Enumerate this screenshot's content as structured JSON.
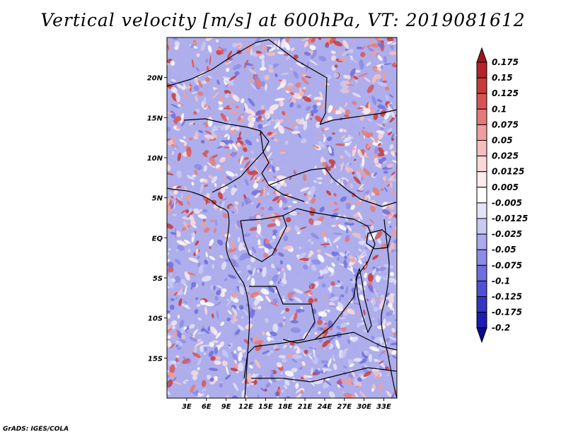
{
  "title": "Vertical velocity [m/s] at 600hPa, VT: 2019081612",
  "footer": "GrADS: IGES/COLA",
  "map": {
    "lon_range": [
      0,
      35
    ],
    "lat_range": [
      -20,
      25
    ],
    "lon_ticks": [
      {
        "lon": 3,
        "label": "3E"
      },
      {
        "lon": 6,
        "label": "6E"
      },
      {
        "lon": 9,
        "label": "9E"
      },
      {
        "lon": 12,
        "label": "12E"
      },
      {
        "lon": 15,
        "label": "15E"
      },
      {
        "lon": 18,
        "label": "18E"
      },
      {
        "lon": 21,
        "label": "21E"
      },
      {
        "lon": 24,
        "label": "24E"
      },
      {
        "lon": 27,
        "label": "27E"
      },
      {
        "lon": 30,
        "label": "30E"
      },
      {
        "lon": 33,
        "label": "33E"
      }
    ],
    "lat_ticks": [
      {
        "lat": 20,
        "label": "20N"
      },
      {
        "lat": 15,
        "label": "15N"
      },
      {
        "lat": 10,
        "label": "10N"
      },
      {
        "lat": 5,
        "label": "5N"
      },
      {
        "lat": 0,
        "label": "EQ"
      },
      {
        "lat": -5,
        "label": "5S"
      },
      {
        "lat": -10,
        "label": "10S"
      },
      {
        "lat": -15,
        "label": "15S"
      }
    ]
  },
  "colorbar": {
    "labels": [
      "0.175",
      "0.15",
      "0.125",
      "0.1",
      "0.075",
      "0.05",
      "0.025",
      "0.0125",
      "0.005",
      "-0.005",
      "-0.0125",
      "-0.025",
      "-0.05",
      "-0.075",
      "-0.1",
      "-0.125",
      "-0.175",
      "-0.2"
    ],
    "colors": [
      "#a0141e",
      "#b4252a",
      "#c83a3a",
      "#d85555",
      "#e47a78",
      "#ee9e9c",
      "#f5bfbd",
      "#fadad8",
      "#fdeceb",
      "#ffffff",
      "#e4e4f8",
      "#c9c9f3",
      "#aaaaee",
      "#8c8ce6",
      "#6e6ede",
      "#5050d2",
      "#3434c2",
      "#1c1cae",
      "#0a0a96"
    ]
  }
}
